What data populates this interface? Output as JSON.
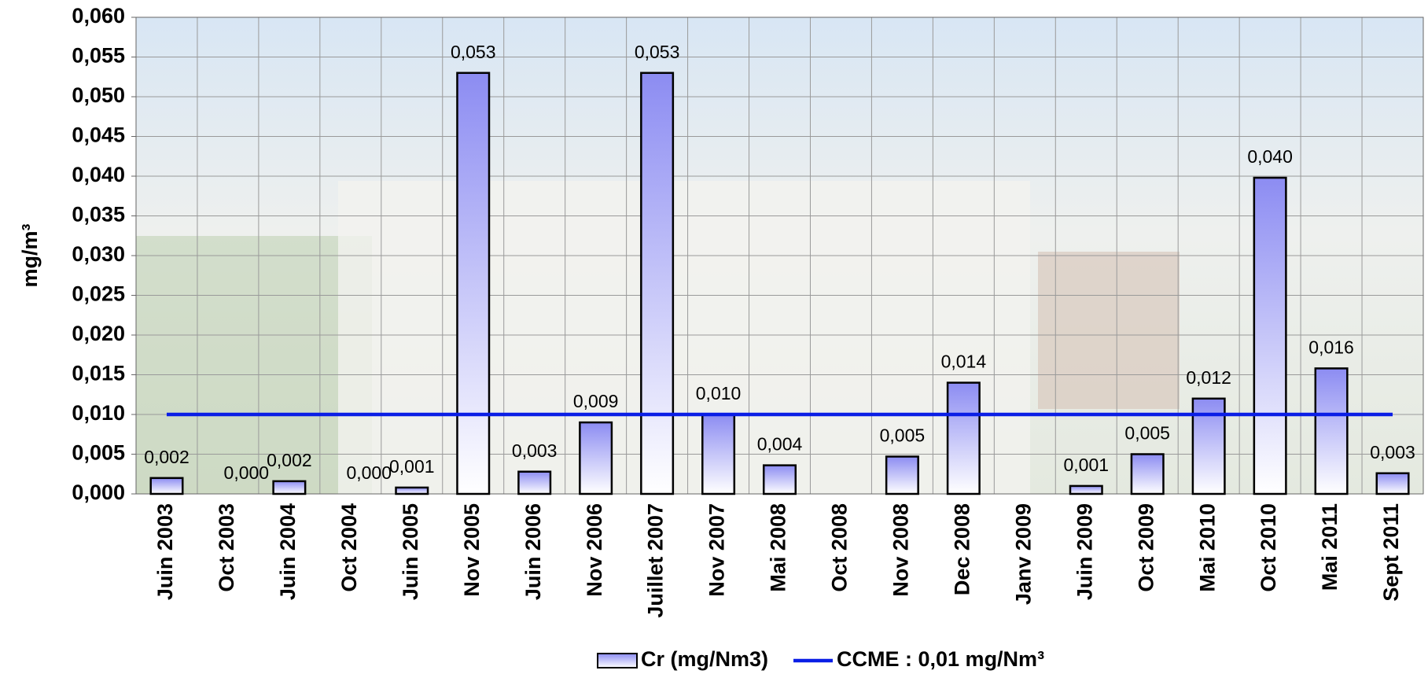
{
  "chart_data": {
    "type": "bar",
    "y_label": "mg/m³",
    "categories": [
      "Juin 2003",
      "Oct 2003",
      "Juin 2004",
      "Oct 2004",
      "Juin 2005",
      "Nov 2005",
      "Juin 2006",
      "Nov 2006",
      "Juillet 2007",
      "Nov 2007",
      "Mai 2008",
      "Oct 2008",
      "Nov 2008",
      "Dec 2008",
      "Janv 2009",
      "Juin 2009",
      "Oct 2009",
      "Mai 2010",
      "Oct 2010",
      "Mai 2011",
      "Sept 2011"
    ],
    "series": [
      {
        "name": "Cr (mg/Nm3)",
        "type": "bar",
        "color": "#8c8cf2",
        "values": [
          0.002,
          0.0,
          0.0016,
          0.0,
          0.0008,
          0.053,
          0.0028,
          0.009,
          0.053,
          0.01,
          0.0036,
          null,
          0.0047,
          0.014,
          null,
          0.001,
          0.005,
          0.012,
          0.0398,
          0.0158,
          0.0026
        ],
        "value_labels": [
          "0,002",
          "0,000",
          "0,002",
          "0,000",
          "0,001",
          "0,053",
          "0,003",
          "0,009",
          "0,053",
          "0,010",
          "0,004",
          null,
          "0,005",
          "0,014",
          null,
          "0,001",
          "0,005",
          "0,012",
          "0,040",
          "0,016",
          "0,003"
        ]
      },
      {
        "name": "CCME : 0,01 mg/Nm³",
        "type": "line",
        "color": "#0a1ee6",
        "values": [
          0.01,
          0.01,
          0.01,
          0.01,
          0.01,
          0.01,
          0.01,
          0.01,
          0.01,
          0.01,
          0.01,
          0.01,
          0.01,
          0.01,
          0.01,
          0.01,
          0.01,
          0.01,
          0.01,
          0.01,
          0.01
        ]
      }
    ],
    "ylim": [
      0,
      0.06
    ],
    "yticks": [
      {
        "value": 0,
        "label": "0,000"
      },
      {
        "value": 0.005,
        "label": "0,005"
      },
      {
        "value": 0.01,
        "label": "0,010"
      },
      {
        "value": 0.015,
        "label": "0,015"
      },
      {
        "value": 0.02,
        "label": "0,020"
      },
      {
        "value": 0.025,
        "label": "0,025"
      },
      {
        "value": 0.03,
        "label": "0,030"
      },
      {
        "value": 0.035,
        "label": "0,035"
      },
      {
        "value": 0.04,
        "label": "0,040"
      },
      {
        "value": 0.045,
        "label": "0,045"
      },
      {
        "value": 0.05,
        "label": "0,050"
      },
      {
        "value": 0.055,
        "label": "0,055"
      },
      {
        "value": 0.06,
        "label": "0,060"
      }
    ],
    "grid": true
  }
}
